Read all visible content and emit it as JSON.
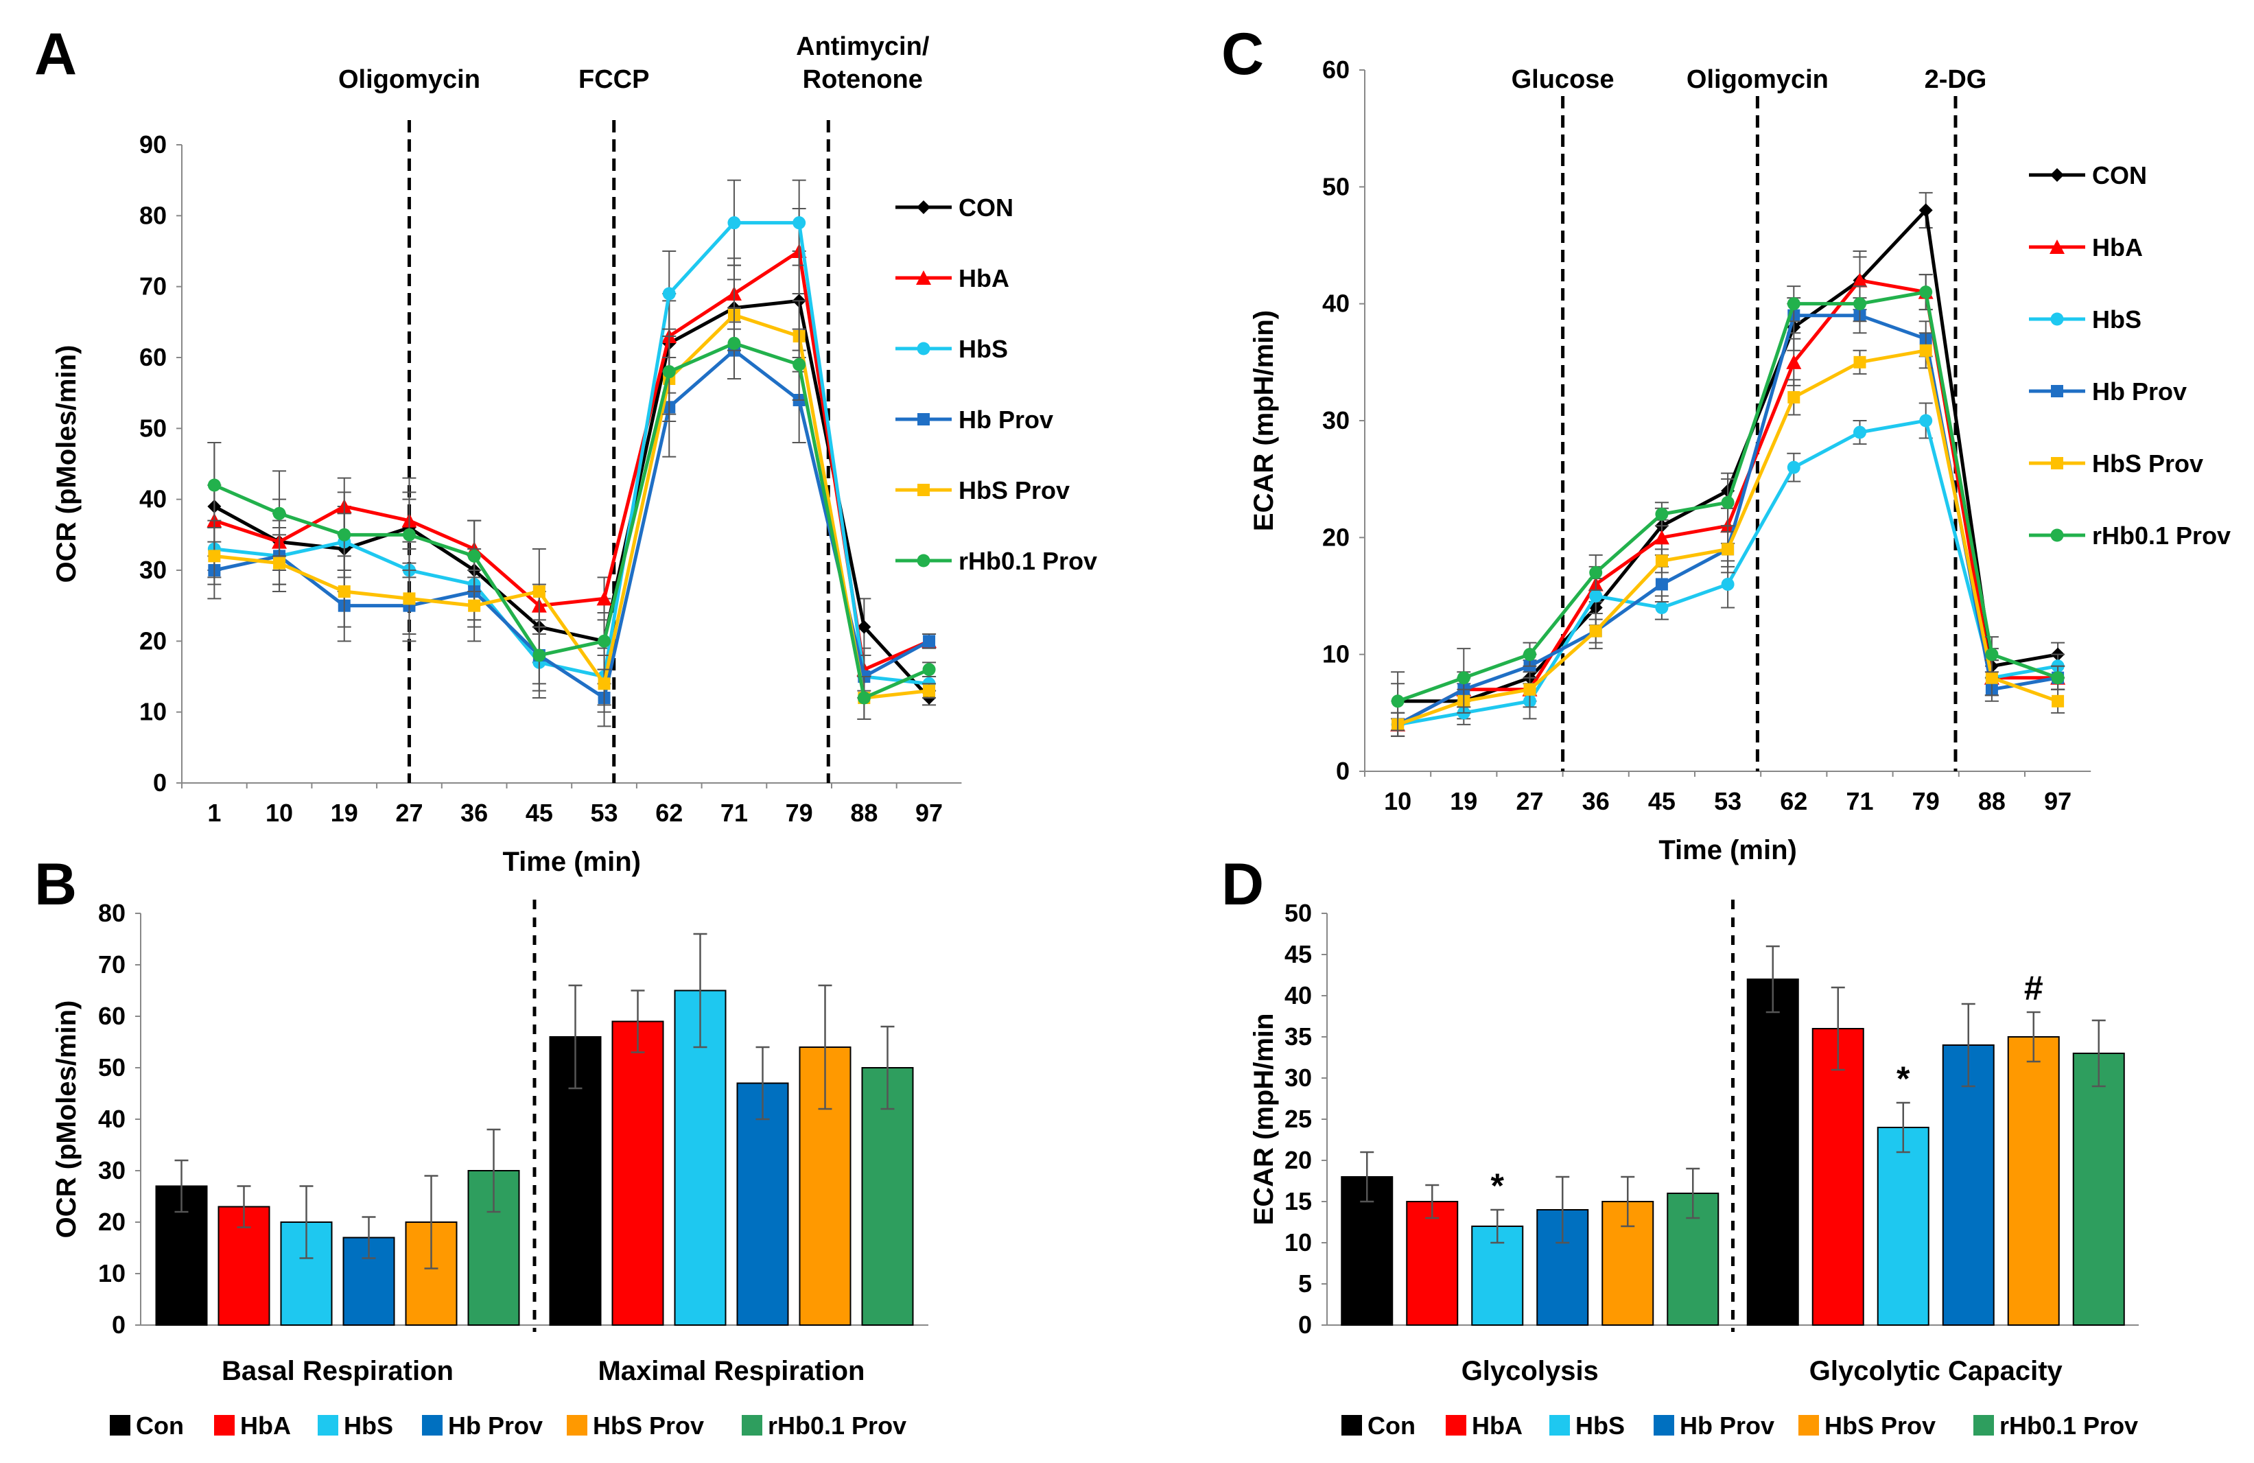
{
  "panel_letters": {
    "A": "A",
    "B": "B",
    "C": "C",
    "D": "D"
  },
  "colors": {
    "CON": "#000000",
    "HbA": "#ff0000",
    "HbS": "#1ec8f0",
    "Hb Prov": "#1f6fc5",
    "HbS Prov": "#ffc000",
    "rHb0.1 Prov": "#22b14c",
    "bar_Con": "#000000",
    "bar_HbA": "#ff0000",
    "bar_HbS": "#1ec8f0",
    "bar_Hb Prov": "#0070c0",
    "bar_HbS Prov": "#ff9900",
    "bar_rHb0.1 Prov": "#2e9e5e"
  },
  "chart_data": [
    {
      "panel": "A",
      "type": "line",
      "title": "",
      "xlabel": "Time (min)",
      "ylabel": "OCR (pMoles/min)",
      "ylim": [
        0,
        90
      ],
      "yticks": [
        "0",
        "10",
        "20",
        "30",
        "40",
        "50",
        "60",
        "70",
        "80",
        "90"
      ],
      "categories": [
        "1",
        "10",
        "19",
        "27",
        "36",
        "45",
        "53",
        "62",
        "71",
        "79",
        "88",
        "97"
      ],
      "events": [
        {
          "label": "Oligomycin",
          "after_index": 3.0
        },
        {
          "label": "FCCP",
          "after_index": 6.15
        },
        {
          "label": "Antimycin/",
          "label2": "Rotenone",
          "after_index": 9.45
        }
      ],
      "series": [
        {
          "name": "CON",
          "marker": "diamond",
          "values": [
            39,
            34,
            33,
            36,
            30,
            22,
            20,
            62,
            67,
            68,
            22,
            12
          ],
          "errors": [
            9,
            6,
            6,
            7,
            7,
            5,
            6,
            7,
            6,
            7,
            4,
            1
          ]
        },
        {
          "name": "HbA",
          "marker": "triangle",
          "values": [
            37,
            34,
            39,
            37,
            33,
            25,
            26,
            63,
            69,
            75,
            16,
            20
          ],
          "errors": [
            5,
            4,
            4,
            4,
            4,
            3,
            3,
            5,
            5,
            6,
            3,
            1
          ]
        },
        {
          "name": "HbS",
          "marker": "circle",
          "values": [
            33,
            32,
            34,
            30,
            28,
            17,
            15,
            69,
            79,
            79,
            15,
            14
          ],
          "errors": [
            4,
            4,
            4,
            4,
            5,
            5,
            4,
            6,
            6,
            6,
            3,
            1
          ]
        },
        {
          "name": "Hb Prov",
          "marker": "square",
          "values": [
            30,
            32,
            25,
            25,
            27,
            18,
            12,
            53,
            61,
            54,
            15,
            20
          ],
          "errors": [
            4,
            5,
            5,
            5,
            5,
            4,
            4,
            7,
            4,
            6,
            3,
            1
          ]
        },
        {
          "name": "HbS Prov",
          "marker": "square",
          "values": [
            32,
            31,
            27,
            26,
            25,
            27,
            14,
            57,
            66,
            63,
            12,
            13
          ],
          "errors": [
            4,
            4,
            5,
            5,
            5,
            6,
            4,
            6,
            5,
            5,
            3,
            1
          ]
        },
        {
          "name": "rHb0.1 Prov",
          "marker": "circle",
          "values": [
            42,
            38,
            35,
            35,
            32,
            18,
            20,
            58,
            62,
            59,
            12,
            16
          ],
          "errors": [
            6,
            6,
            6,
            5,
            5,
            5,
            4,
            6,
            5,
            5,
            3,
            1
          ]
        }
      ]
    },
    {
      "panel": "C",
      "type": "line",
      "title": "",
      "xlabel": "Time (min)",
      "ylabel": "ECAR (mpH/min)",
      "ylim": [
        0,
        60
      ],
      "yticks": [
        "0",
        "10",
        "20",
        "30",
        "40",
        "50",
        "60"
      ],
      "categories": [
        "10",
        "19",
        "27",
        "36",
        "45",
        "53",
        "62",
        "71",
        "79",
        "88",
        "97"
      ],
      "events": [
        {
          "label": "Glucose",
          "after_index": 2.5
        },
        {
          "label": "Oligomycin",
          "after_index": 5.45
        },
        {
          "label": "2-DG",
          "after_index": 8.45
        }
      ],
      "series": [
        {
          "name": "CON",
          "marker": "diamond",
          "values": [
            6,
            6,
            8,
            14,
            21,
            24,
            38,
            42,
            48,
            9,
            10
          ],
          "errors": [
            1.5,
            1.5,
            1.5,
            1.5,
            1.5,
            1.5,
            2,
            2,
            1.5,
            1.5,
            1
          ]
        },
        {
          "name": "HbA",
          "marker": "triangle",
          "values": [
            4,
            7,
            7,
            16,
            20,
            21,
            35,
            42,
            41,
            8,
            8
          ],
          "errors": [
            1,
            1.5,
            1,
            1.5,
            1.5,
            1.5,
            2,
            2.5,
            1.5,
            1.5,
            1
          ]
        },
        {
          "name": "HbS",
          "marker": "circle",
          "values": [
            4,
            5,
            6,
            15,
            14,
            16,
            26,
            29,
            30,
            8,
            9
          ],
          "errors": [
            1,
            1,
            1.5,
            1.5,
            1,
            2,
            1.2,
            1,
            1.5,
            1.5,
            1
          ]
        },
        {
          "name": "Hb Prov",
          "marker": "square",
          "values": [
            4,
            7,
            9,
            12,
            16,
            19,
            39,
            39,
            37,
            7,
            8
          ],
          "errors": [
            1,
            1,
            1,
            1.5,
            1.5,
            2,
            1.5,
            1.5,
            1.5,
            1,
            1
          ]
        },
        {
          "name": "HbS Prov",
          "marker": "square",
          "values": [
            4,
            6,
            7,
            12,
            18,
            19,
            32,
            35,
            36,
            8,
            6
          ],
          "errors": [
            1,
            1,
            1.5,
            1,
            1,
            1.5,
            1.5,
            1,
            1.5,
            1.5,
            1
          ]
        },
        {
          "name": "rHb0.1 Prov",
          "marker": "circle",
          "values": [
            6,
            8,
            10,
            17,
            22,
            23,
            40,
            40,
            41,
            10,
            8
          ],
          "errors": [
            2.5,
            2.5,
            1,
            1.5,
            1,
            2,
            1.5,
            1.5,
            1.5,
            1.5,
            1
          ]
        }
      ]
    },
    {
      "panel": "B",
      "type": "bar",
      "xlabel": "",
      "ylabel": "OCR (pMoles/min)",
      "ylim": [
        0,
        80
      ],
      "yticks": [
        "0",
        "10",
        "20",
        "30",
        "40",
        "50",
        "60",
        "70",
        "80"
      ],
      "groups": [
        "Basal Respiration",
        "Maximal Respiration"
      ],
      "series": [
        {
          "name": "Con",
          "values": [
            27,
            56
          ],
          "errors": [
            5,
            10
          ]
        },
        {
          "name": "HbA",
          "values": [
            23,
            59
          ],
          "errors": [
            4,
            6
          ]
        },
        {
          "name": "HbS",
          "values": [
            20,
            65
          ],
          "errors": [
            7,
            11
          ]
        },
        {
          "name": "Hb Prov",
          "values": [
            17,
            47
          ],
          "errors": [
            4,
            7
          ]
        },
        {
          "name": "HbS Prov",
          "values": [
            20,
            54
          ],
          "errors": [
            9,
            12
          ]
        },
        {
          "name": "rHb0.1 Prov",
          "values": [
            30,
            50
          ],
          "errors": [
            8,
            8
          ]
        }
      ],
      "annotations": []
    },
    {
      "panel": "D",
      "type": "bar",
      "xlabel": "",
      "ylabel": "ECAR (mpH/min",
      "ylim": [
        0,
        50
      ],
      "yticks": [
        "0",
        "5",
        "10",
        "15",
        "20",
        "25",
        "30",
        "35",
        "40",
        "45",
        "50"
      ],
      "groups": [
        "Glycolysis",
        "Glycolytic Capacity"
      ],
      "series": [
        {
          "name": "Con",
          "values": [
            18,
            42
          ],
          "errors": [
            3,
            4
          ]
        },
        {
          "name": "HbA",
          "values": [
            15,
            36
          ],
          "errors": [
            2,
            5
          ]
        },
        {
          "name": "HbS",
          "values": [
            12,
            24
          ],
          "errors": [
            2,
            3
          ]
        },
        {
          "name": "Hb Prov",
          "values": [
            14,
            34
          ],
          "errors": [
            4,
            5
          ]
        },
        {
          "name": "HbS Prov",
          "values": [
            15,
            35
          ],
          "errors": [
            3,
            3
          ]
        },
        {
          "name": "rHb0.1 Prov",
          "values": [
            16,
            33
          ],
          "errors": [
            3,
            4
          ]
        }
      ],
      "annotations": [
        {
          "group": 0,
          "series": 2,
          "text": "*"
        },
        {
          "group": 1,
          "series": 2,
          "text": "*"
        },
        {
          "group": 1,
          "series": 4,
          "text": "#"
        }
      ]
    }
  ],
  "legends": {
    "lines": [
      "CON",
      "HbA",
      "HbS",
      "Hb Prov",
      "HbS Prov",
      "rHb0.1 Prov"
    ],
    "bars": [
      "Con",
      "HbA",
      "HbS",
      "Hb Prov",
      "HbS Prov",
      "rHb0.1 Prov"
    ]
  }
}
